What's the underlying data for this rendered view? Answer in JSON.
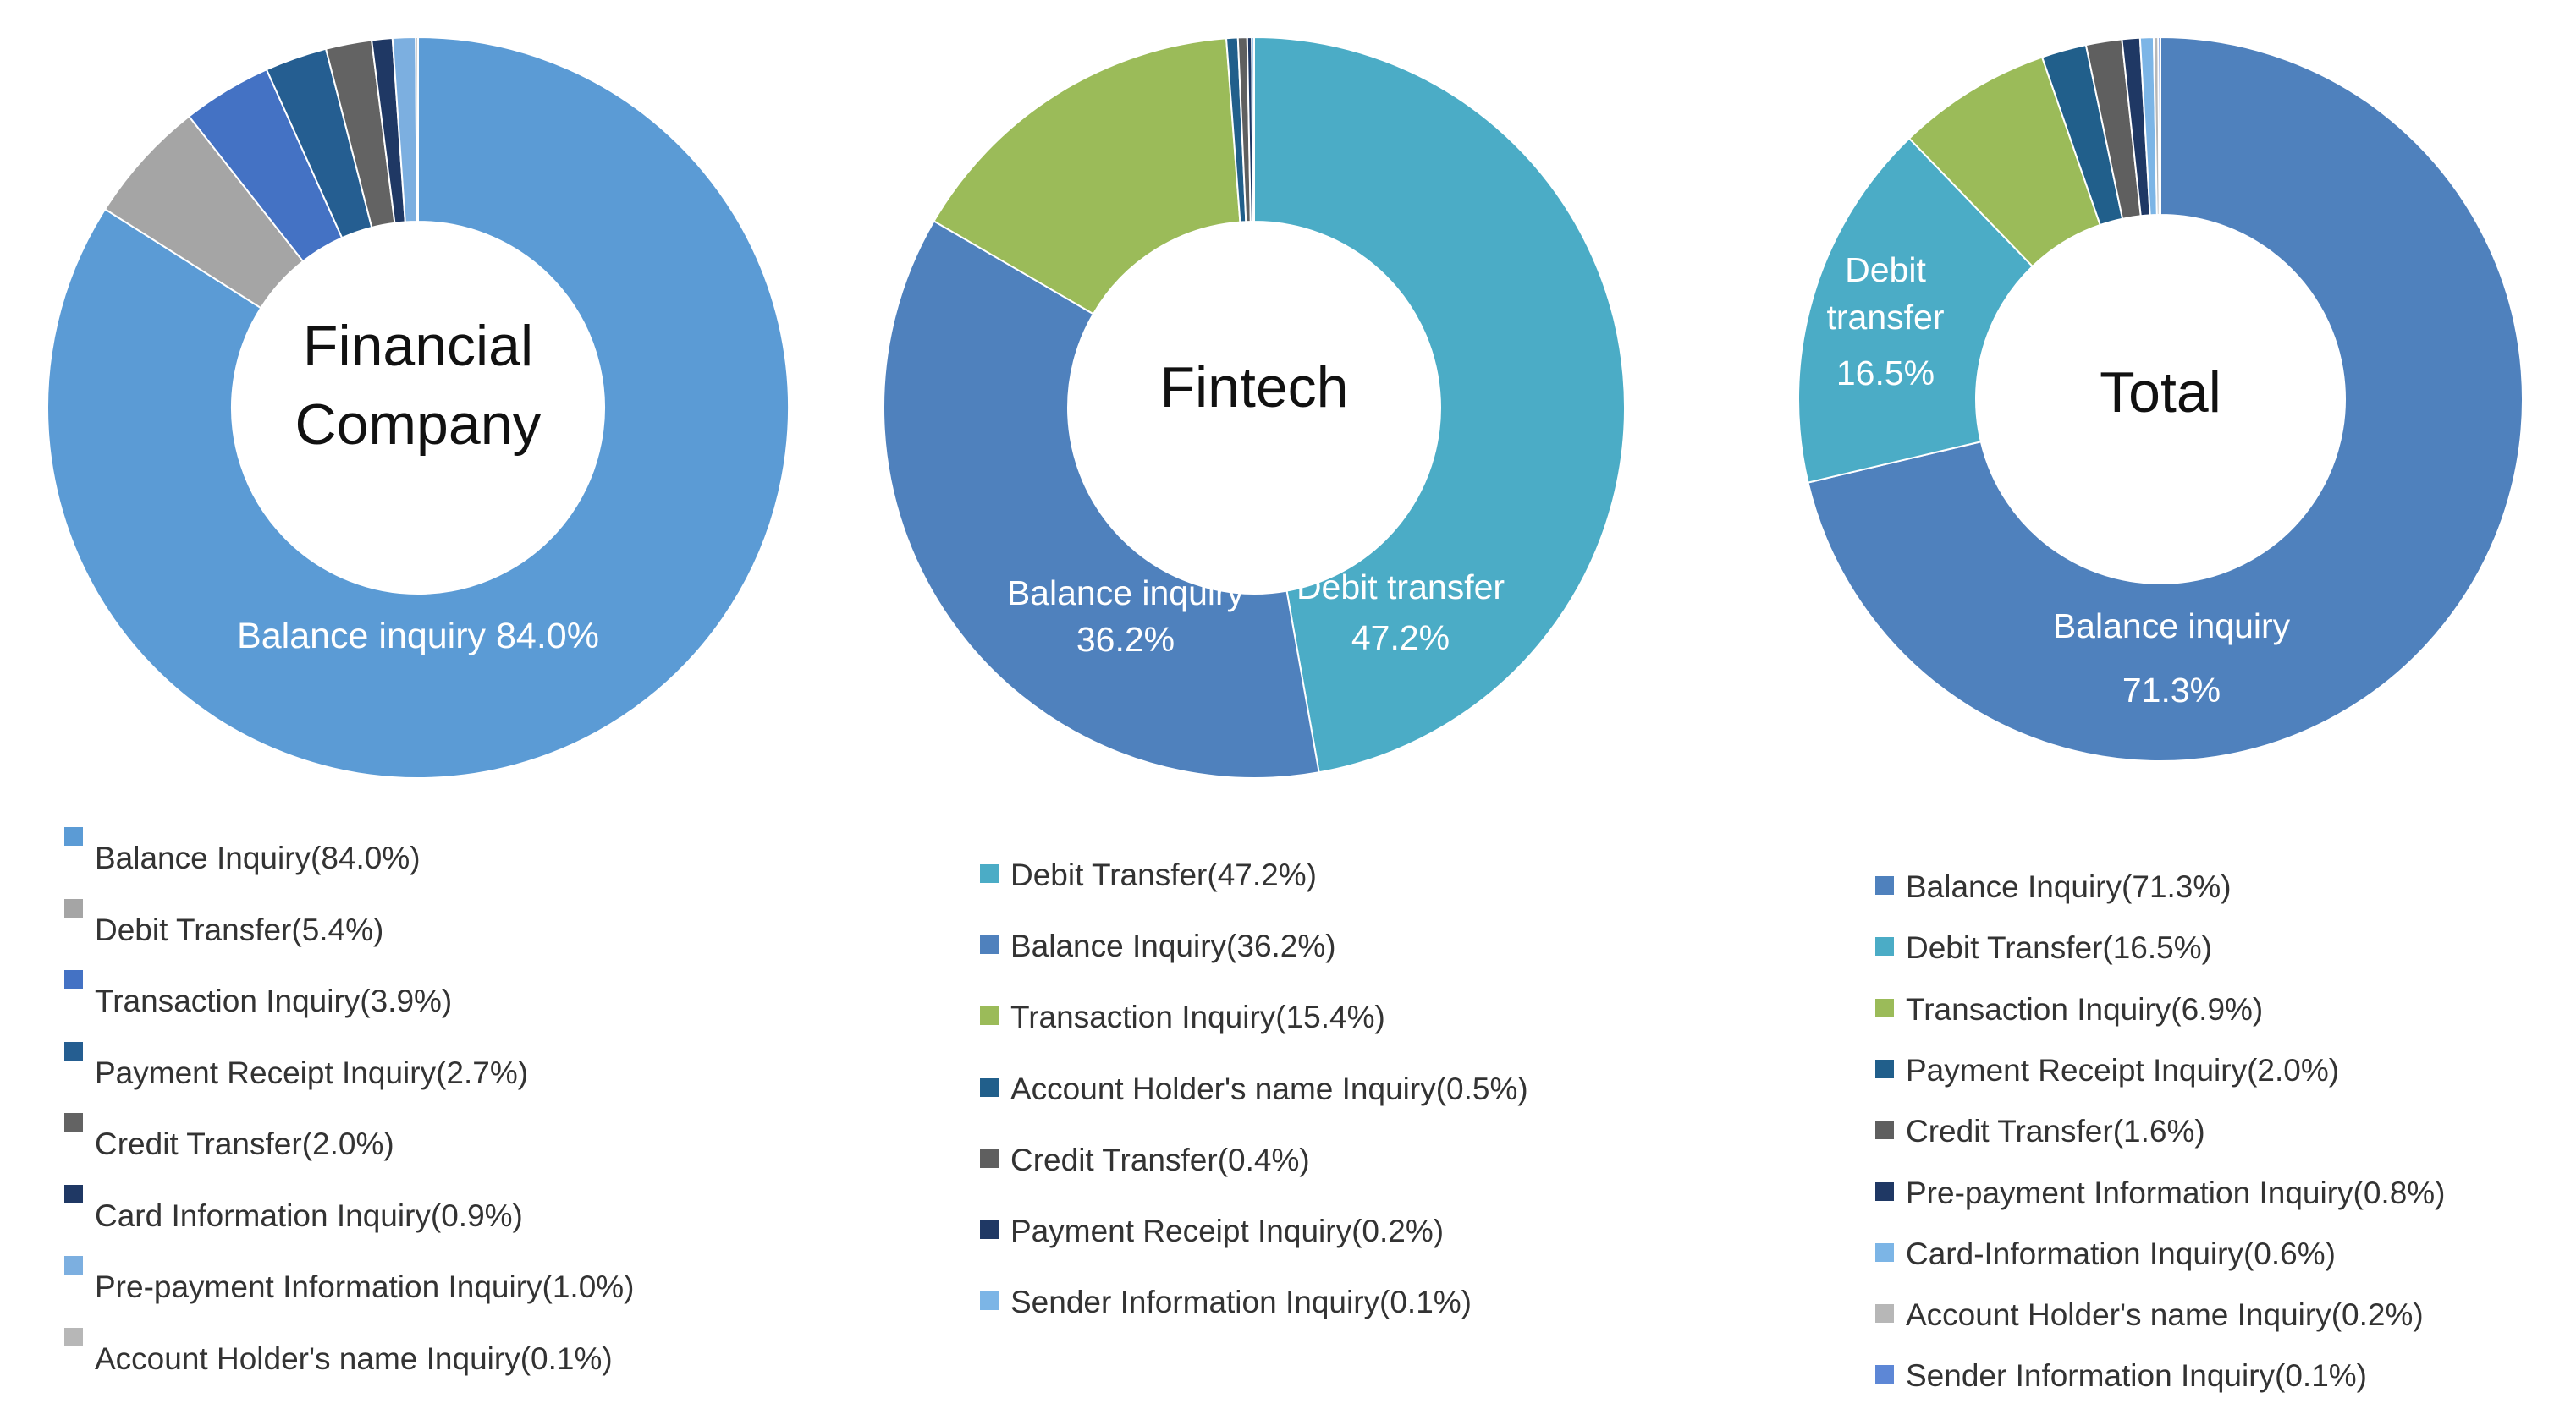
{
  "chart_data": [
    {
      "type": "pie",
      "title": "Financial Company",
      "slices": [
        {
          "label": "Balance Inquiry",
          "legend": "Balance Inquiry(84.0%)",
          "value": 84.0,
          "color": "#5b9bd5"
        },
        {
          "label": "Debit Transfer",
          "legend": "Debit Transfer(5.4%)",
          "value": 5.4,
          "color": "#a5a5a5"
        },
        {
          "label": "Transaction Inquiry",
          "legend": "Transaction Inquiry(3.9%)",
          "value": 3.9,
          "color": "#4472c4"
        },
        {
          "label": "Payment Receipt Inquiry",
          "legend": "Payment Receipt Inquiry(2.7%)",
          "value": 2.7,
          "color": "#255e91"
        },
        {
          "label": "Credit Transfer",
          "legend": "Credit Transfer(2.0%)",
          "value": 2.0,
          "color": "#636363"
        },
        {
          "label": "Card Information Inquiry",
          "legend": "Card Information Inquiry(0.9%)",
          "value": 0.9,
          "color": "#1f3864"
        },
        {
          "label": "Pre-payment Information Inquiry",
          "legend": "Pre-payment Information Inquiry(1.0%)",
          "value": 1.0,
          "color": "#7cafe0"
        },
        {
          "label": "Account Holder's name Inquiry",
          "legend": "Account Holder's name Inquiry(0.1%)",
          "value": 0.1,
          "color": "#b7b7b7"
        }
      ],
      "annotations": [
        {
          "lines": [
            "Balance inquiry 84.0%"
          ]
        }
      ]
    },
    {
      "type": "pie",
      "title": "Fintech",
      "slices": [
        {
          "label": "Debit Transfer",
          "legend": "Debit Transfer(47.2%)",
          "value": 47.2,
          "color": "#4bacc6"
        },
        {
          "label": "Balance Inquiry",
          "legend": "Balance Inquiry(36.2%)",
          "value": 36.2,
          "color": "#4f81bd"
        },
        {
          "label": "Transaction Inquiry",
          "legend": "Transaction Inquiry(15.4%)",
          "value": 15.4,
          "color": "#9bbb59"
        },
        {
          "label": "Account Holder's name Inquiry",
          "legend": "Account Holder's name Inquiry(0.5%)",
          "value": 0.5,
          "color": "#215f8b"
        },
        {
          "label": "Credit Transfer",
          "legend": "Credit Transfer(0.4%)",
          "value": 0.4,
          "color": "#5f5f5f"
        },
        {
          "label": "Payment Receipt Inquiry",
          "legend": "Payment Receipt Inquiry(0.2%)",
          "value": 0.2,
          "color": "#1f3864"
        },
        {
          "label": "Sender Information Inquiry",
          "legend": "Sender Information Inquiry(0.1%)",
          "value": 0.1,
          "color": "#7cb5e6"
        }
      ],
      "annotations": [
        {
          "lines": [
            "Balance inquiry",
            "36.2%"
          ]
        },
        {
          "lines": [
            "Debit transfer",
            "47.2%"
          ]
        }
      ]
    },
    {
      "type": "pie",
      "title": "Total",
      "slices": [
        {
          "label": "Balance Inquiry",
          "legend": "Balance Inquiry(71.3%)",
          "value": 71.3,
          "color": "#4f81bd"
        },
        {
          "label": "Debit Transfer",
          "legend": "Debit Transfer(16.5%)",
          "value": 16.5,
          "color": "#4bacc6"
        },
        {
          "label": "Transaction Inquiry",
          "legend": "Transaction Inquiry(6.9%)",
          "value": 6.9,
          "color": "#9bbb59"
        },
        {
          "label": "Payment Receipt Inquiry",
          "legend": "Payment Receipt Inquiry(2.0%)",
          "value": 2.0,
          "color": "#215f8b"
        },
        {
          "label": "Credit Transfer",
          "legend": "Credit Transfer(1.6%)",
          "value": 1.6,
          "color": "#5f5f5f"
        },
        {
          "label": "Pre-payment Information Inquiry",
          "legend": "Pre-payment Information Inquiry(0.8%)",
          "value": 0.8,
          "color": "#1f3864"
        },
        {
          "label": "Card-Information Inquiry",
          "legend": "Card-Information Inquiry(0.6%)",
          "value": 0.6,
          "color": "#7cb5e6"
        },
        {
          "label": "Account Holder's name Inquiry",
          "legend": "Account Holder's name Inquiry(0.2%)",
          "value": 0.2,
          "color": "#b7b7b7"
        },
        {
          "label": "Sender Information Inquiry",
          "legend": "Sender Information Inquiry(0.1%)",
          "value": 0.1,
          "color": "#5d87d6"
        }
      ],
      "annotations": [
        {
          "lines": [
            "Debit",
            "transfer",
            "16.5%"
          ]
        },
        {
          "lines": [
            "Balance inquiry",
            "71.3%"
          ]
        }
      ]
    }
  ]
}
